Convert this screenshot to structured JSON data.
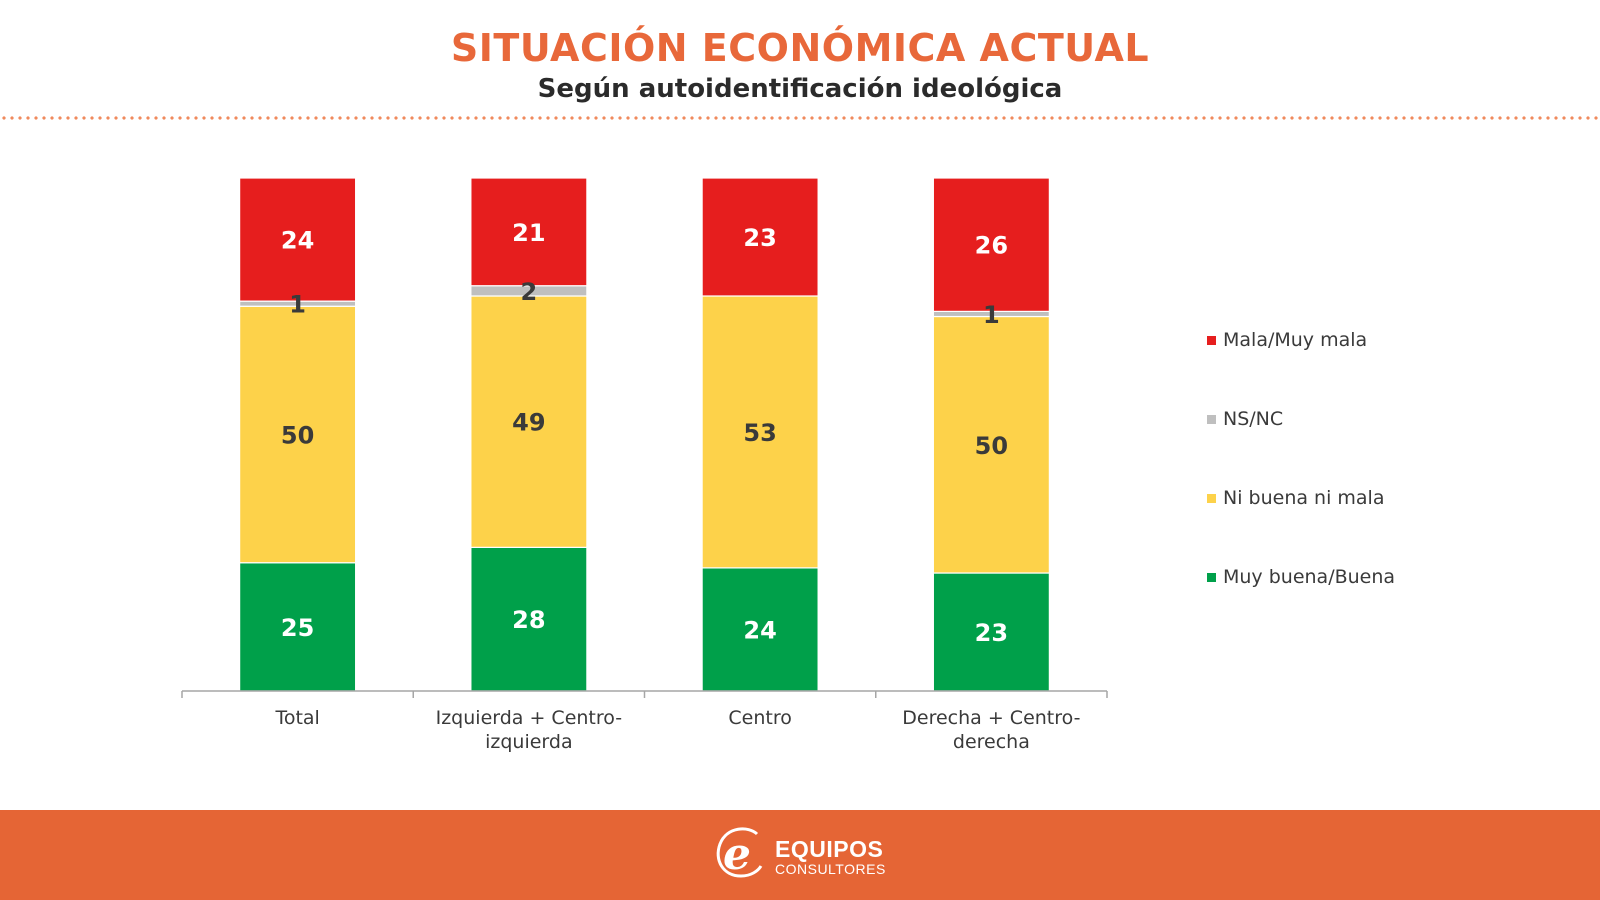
{
  "header": {
    "title": "SITUACIÓN ECONÓMICA ACTUAL",
    "subtitle": "Según autoidentificación ideológica"
  },
  "chart_data": {
    "type": "bar",
    "stacked": true,
    "title": "SITUACIÓN ECONÓMICA ACTUAL",
    "subtitle": "Según autoidentificación ideológica",
    "xlabel": "",
    "ylabel": "",
    "ylim": [
      0,
      100
    ],
    "grid": false,
    "legend_position": "right",
    "categories": [
      "Total",
      "Izquierda + Centro-izquierda",
      "Centro",
      "Derecha + Centro-derecha"
    ],
    "category_lines": [
      [
        "Total"
      ],
      [
        "Izquierda + Centro-",
        "izquierda"
      ],
      [
        "Centro"
      ],
      [
        "Derecha + Centro-",
        "derecha"
      ]
    ],
    "series": [
      {
        "name": "Muy buena/Buena",
        "color": "#00a04a",
        "label_color": "#ffffff",
        "values": [
          25,
          28,
          24,
          23
        ]
      },
      {
        "name": "Ni buena ni mala",
        "color": "#fdd24a",
        "label_color": "#3a3a3a",
        "values": [
          50,
          49,
          53,
          50
        ]
      },
      {
        "name": "NS/NC",
        "color": "#bfbfbf",
        "label_color": "#3a3a3a",
        "values": [
          1,
          2,
          0,
          1
        ]
      },
      {
        "name": "Mala/Muy mala",
        "color": "#e61e1e",
        "label_color": "#ffffff",
        "values": [
          24,
          21,
          23,
          26
        ]
      }
    ],
    "legend_order": [
      "Mala/Muy mala",
      "NS/NC",
      "Ni buena ni mala",
      "Muy buena/Buena"
    ]
  },
  "footer": {
    "brand_name": "EQUIPOS",
    "brand_sub": "CONSULTORES",
    "background_color": "#e56535"
  }
}
